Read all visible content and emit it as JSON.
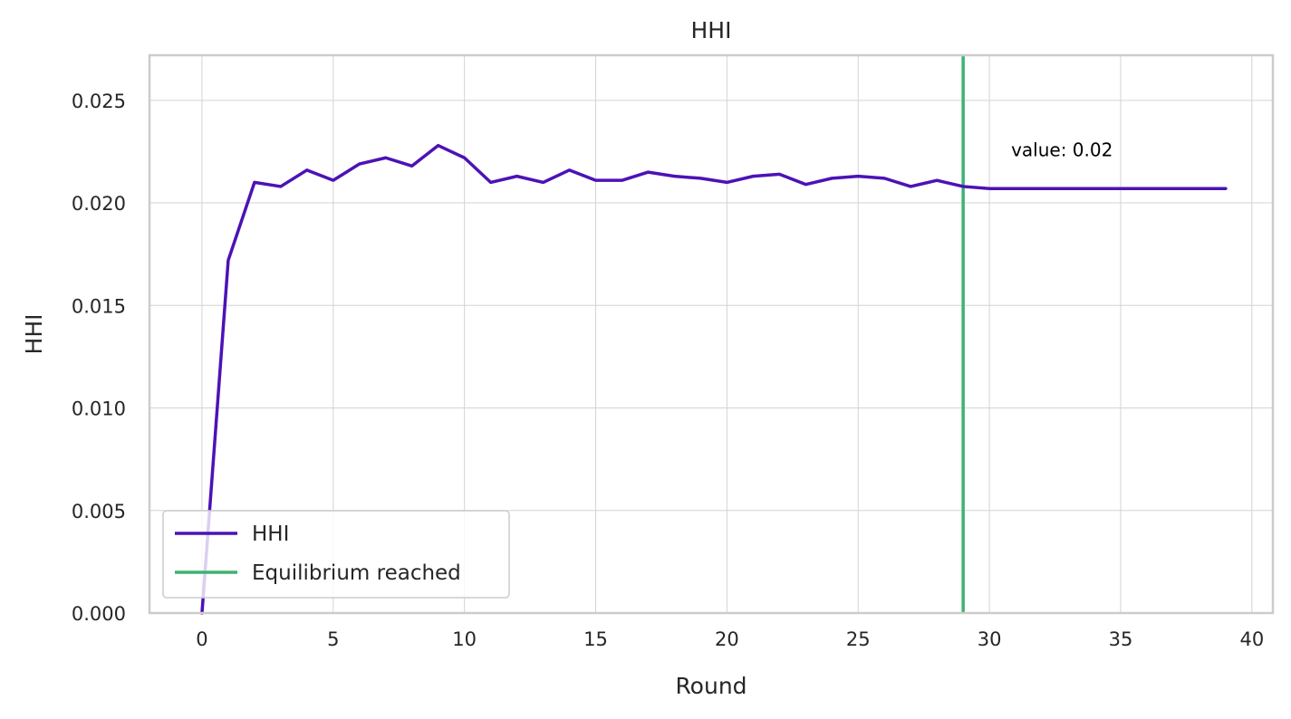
{
  "chart_data": {
    "type": "line",
    "title": "HHI",
    "xlabel": "Round",
    "ylabel": "HHI",
    "xlim": [
      -2,
      40.8
    ],
    "ylim": [
      0,
      0.0272
    ],
    "xticks": [
      0,
      5,
      10,
      15,
      20,
      25,
      30,
      35,
      40
    ],
    "xtick_labels": [
      "0",
      "5",
      "10",
      "15",
      "20",
      "25",
      "30",
      "35",
      "40"
    ],
    "yticks": [
      0,
      0.005,
      0.01,
      0.015,
      0.02,
      0.025
    ],
    "ytick_labels": [
      "0.000",
      "0.005",
      "0.010",
      "0.015",
      "0.020",
      "0.025"
    ],
    "grid": true,
    "legend_position": "lower-left",
    "series": [
      {
        "name": "HHI",
        "color": "#4c12b6",
        "x": [
          0,
          1,
          2,
          3,
          4,
          5,
          6,
          7,
          8,
          9,
          10,
          11,
          12,
          13,
          14,
          15,
          16,
          17,
          18,
          19,
          20,
          21,
          22,
          23,
          24,
          25,
          26,
          27,
          28,
          29,
          30,
          31,
          32,
          33,
          34,
          35,
          36,
          37,
          38,
          39
        ],
        "values": [
          0.0,
          0.0172,
          0.021,
          0.0208,
          0.0216,
          0.0211,
          0.0219,
          0.0222,
          0.0218,
          0.0228,
          0.0222,
          0.021,
          0.0213,
          0.021,
          0.0216,
          0.0211,
          0.0211,
          0.0215,
          0.0213,
          0.0212,
          0.021,
          0.0213,
          0.0214,
          0.0209,
          0.0212,
          0.0213,
          0.0212,
          0.0208,
          0.0211,
          0.0208,
          0.0207,
          0.0207,
          0.0207,
          0.0207,
          0.0207,
          0.0207,
          0.0207,
          0.0207,
          0.0207,
          0.0207
        ]
      }
    ],
    "vertical_lines": [
      {
        "name": "Equilibrium reached",
        "x": 29,
        "color": "#3cb371"
      }
    ],
    "annotations": [
      {
        "text": "value: 0.02",
        "x": 31,
        "y": 0.0213
      }
    ]
  },
  "legend": {
    "items": [
      {
        "label": "HHI",
        "color": "#4c12b6"
      },
      {
        "label": "Equilibrium reached",
        "color": "#3cb371"
      }
    ]
  }
}
